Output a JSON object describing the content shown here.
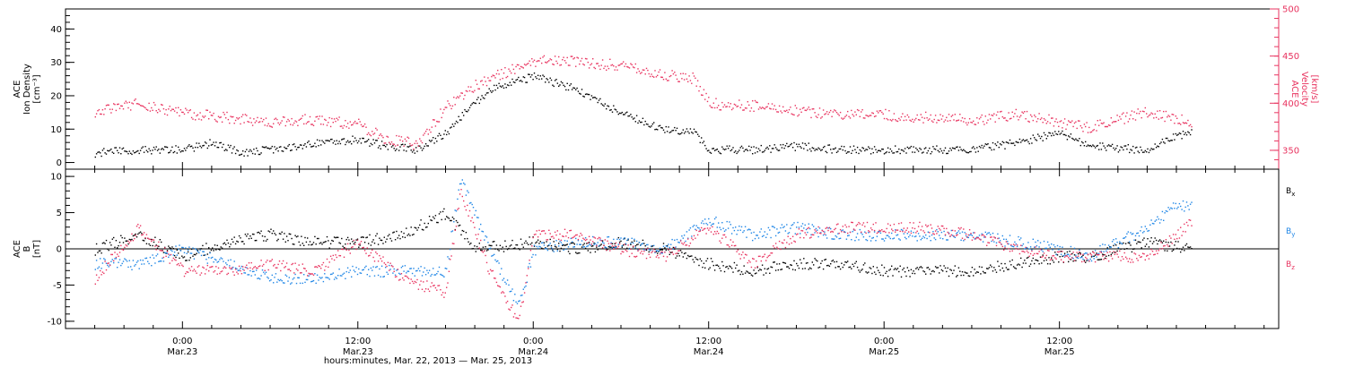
{
  "chart_data": [
    {
      "type": "scatter",
      "panel": "top",
      "left_axis": {
        "label_lines": [
          "ACE",
          "Ion Density",
          "[cm⁻³]"
        ],
        "ylim": [
          -2,
          46
        ],
        "ticks": [
          0,
          10,
          20,
          30,
          40
        ],
        "color": "#000000"
      },
      "right_axis": {
        "label_lines": [
          "ACE",
          "Velocity",
          "[km/s]"
        ],
        "ylim": [
          330,
          500
        ],
        "ticks": [
          350,
          400,
          450,
          500
        ],
        "color": "#e8335f"
      },
      "series": [
        {
          "axis": "left",
          "color": "#000000",
          "points": [
            [
              -6,
              3
            ],
            [
              -3,
              4
            ],
            [
              0,
              4
            ],
            [
              2,
              6
            ],
            [
              4,
              3
            ],
            [
              6,
              4
            ],
            [
              9,
              6
            ],
            [
              12,
              7
            ],
            [
              14,
              5
            ],
            [
              16,
              4
            ],
            [
              18,
              9
            ],
            [
              19,
              14
            ],
            [
              21,
              22
            ],
            [
              24,
              26
            ],
            [
              27,
              22
            ],
            [
              30,
              15
            ],
            [
              33,
              10
            ],
            [
              35,
              9
            ],
            [
              36,
              4
            ],
            [
              39,
              4
            ],
            [
              42,
              5
            ],
            [
              45,
              4
            ],
            [
              48,
              4
            ],
            [
              51,
              4
            ],
            [
              54,
              4
            ],
            [
              57,
              6
            ],
            [
              60,
              9
            ],
            [
              62,
              5
            ],
            [
              66,
              4
            ],
            [
              68,
              8
            ],
            [
              69,
              9
            ]
          ]
        },
        {
          "axis": "right",
          "color": "#e8335f",
          "points": [
            [
              -6,
              392
            ],
            [
              -3,
              400
            ],
            [
              0,
              390
            ],
            [
              3,
              385
            ],
            [
              6,
              381
            ],
            [
              9,
              383
            ],
            [
              12,
              378
            ],
            [
              14,
              362
            ],
            [
              16,
              357
            ],
            [
              18,
              396
            ],
            [
              20,
              420
            ],
            [
              24,
              445
            ],
            [
              27,
              445
            ],
            [
              30,
              440
            ],
            [
              33,
              430
            ],
            [
              35,
              427
            ],
            [
              36,
              400
            ],
            [
              39,
              398
            ],
            [
              42,
              392
            ],
            [
              45,
              388
            ],
            [
              48,
              388
            ],
            [
              51,
              385
            ],
            [
              54,
              382
            ],
            [
              57,
              389
            ],
            [
              60,
              380
            ],
            [
              62,
              374
            ],
            [
              66,
              392
            ],
            [
              69,
              380
            ]
          ]
        }
      ]
    },
    {
      "type": "scatter",
      "panel": "bottom",
      "left_axis": {
        "label_lines": [
          "ACE",
          "B",
          "[nT]"
        ],
        "ylim": [
          -11,
          11
        ],
        "ticks": [
          -10,
          -5,
          0,
          5,
          10
        ],
        "color": "#000000"
      },
      "series": [
        {
          "name": "Bx",
          "color": "#000000",
          "points": [
            [
              -6,
              0
            ],
            [
              -3,
              2
            ],
            [
              0,
              -1
            ],
            [
              3,
              1
            ],
            [
              6,
              2
            ],
            [
              9,
              1
            ],
            [
              12,
              1
            ],
            [
              15,
              2
            ],
            [
              18,
              5
            ],
            [
              20,
              0
            ],
            [
              24,
              1
            ],
            [
              27,
              0
            ],
            [
              30,
              1
            ],
            [
              33,
              0
            ],
            [
              36,
              -2
            ],
            [
              39,
              -3
            ],
            [
              42,
              -2
            ],
            [
              45,
              -2
            ],
            [
              48,
              -3
            ],
            [
              51,
              -3
            ],
            [
              54,
              -3
            ],
            [
              57,
              -2
            ],
            [
              60,
              -1
            ],
            [
              62,
              -1
            ],
            [
              66,
              1
            ],
            [
              69,
              0
            ]
          ]
        },
        {
          "name": "By",
          "color": "#1f86e6",
          "points": [
            [
              -6,
              -2
            ],
            [
              -3,
              -2
            ],
            [
              0,
              0
            ],
            [
              3,
              -2
            ],
            [
              6,
              -4
            ],
            [
              9,
              -4
            ],
            [
              12,
              -3
            ],
            [
              15,
              -3
            ],
            [
              18,
              -3
            ],
            [
              19,
              10
            ],
            [
              21,
              0
            ],
            [
              23,
              -8
            ],
            [
              24,
              0
            ],
            [
              27,
              1
            ],
            [
              30,
              1
            ],
            [
              33,
              0
            ],
            [
              36,
              4
            ],
            [
              39,
              2
            ],
            [
              42,
              3
            ],
            [
              45,
              2
            ],
            [
              48,
              2
            ],
            [
              51,
              2
            ],
            [
              54,
              2
            ],
            [
              57,
              1
            ],
            [
              60,
              0
            ],
            [
              62,
              -1
            ],
            [
              66,
              3
            ],
            [
              68,
              6
            ],
            [
              69,
              6
            ]
          ]
        },
        {
          "name": "Bz",
          "color": "#e8335f",
          "points": [
            [
              -6,
              -4
            ],
            [
              -3,
              3
            ],
            [
              0,
              -3
            ],
            [
              3,
              -3
            ],
            [
              6,
              -2
            ],
            [
              9,
              -3
            ],
            [
              12,
              1
            ],
            [
              15,
              -4
            ],
            [
              18,
              -6
            ],
            [
              19,
              8
            ],
            [
              21,
              -3
            ],
            [
              23,
              -10
            ],
            [
              24,
              2
            ],
            [
              27,
              2
            ],
            [
              30,
              0
            ],
            [
              33,
              -1
            ],
            [
              36,
              3
            ],
            [
              39,
              -2
            ],
            [
              42,
              2
            ],
            [
              45,
              3
            ],
            [
              48,
              3
            ],
            [
              51,
              3
            ],
            [
              54,
              2
            ],
            [
              57,
              0
            ],
            [
              60,
              -1
            ],
            [
              62,
              -1
            ],
            [
              66,
              -1
            ],
            [
              68,
              2
            ],
            [
              69,
              4
            ]
          ]
        }
      ]
    }
  ],
  "x_axis": {
    "title": "hours:minutes, Mar. 22, 2013 — Mar. 25, 2013",
    "xlim_hours": [
      -8,
      75
    ],
    "major_ticks": [
      {
        "hour": 0,
        "time": "0:00",
        "date": "Mar.23"
      },
      {
        "hour": 12,
        "time": "12:00",
        "date": "Mar.23"
      },
      {
        "hour": 24,
        "time": "0:00",
        "date": "Mar.24"
      },
      {
        "hour": 36,
        "time": "12:00",
        "date": "Mar.24"
      },
      {
        "hour": 48,
        "time": "0:00",
        "date": "Mar.25"
      },
      {
        "hour": 60,
        "time": "12:00",
        "date": "Mar.25"
      }
    ]
  },
  "legend": [
    {
      "label": "B",
      "sub": "x",
      "color": "#000000"
    },
    {
      "label": "B",
      "sub": "y",
      "color": "#1f86e6"
    },
    {
      "label": "B",
      "sub": "z",
      "color": "#e8335f"
    }
  ]
}
